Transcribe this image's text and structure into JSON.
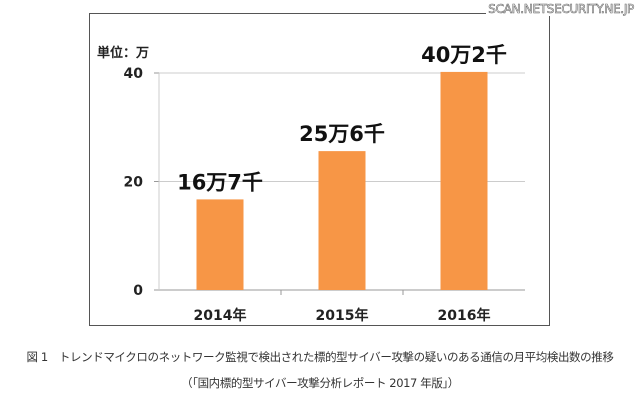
{
  "watermark": "SCAN.NETSECURITY.NE.JP",
  "chart_data": {
    "type": "bar",
    "unit_label": "単位：万",
    "categories": [
      "2014年",
      "2015年",
      "2016年"
    ],
    "values": [
      16.7,
      25.6,
      40.2
    ],
    "data_labels": [
      "16万7千",
      "25万6千",
      "40万2千"
    ],
    "yticks": [
      "0",
      "20",
      "40"
    ],
    "ylim": [
      0,
      40
    ],
    "grid": true,
    "bar_color": "#F79646"
  },
  "caption": {
    "line1": "図 1　トレンドマイクロのネットワーク監視で検出された標的型サイバー攻撃の疑いのある通信の月平均検出数の推移",
    "line2": "（「国内標的型サイバー攻撃分析レポート 2017 年版」）"
  }
}
